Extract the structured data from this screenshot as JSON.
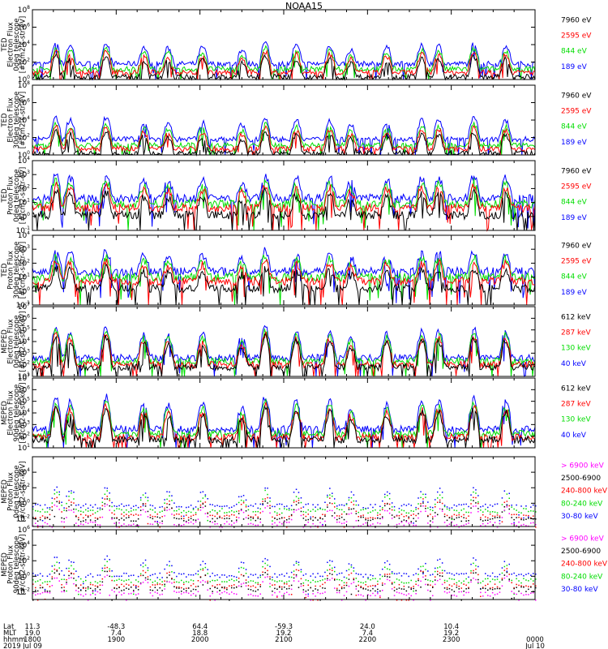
{
  "title": "NOAA15",
  "colors": {
    "black": "#000000",
    "red": "#ff0000",
    "green": "#00dd00",
    "blue": "#0000ff",
    "magenta": "#ff00ff"
  },
  "chart_data": [
    {
      "type": "line",
      "ylabel": [
        "TED",
        "Electron Flux",
        "0deg telescope",
        "[#/cm2-s-str-eV]"
      ],
      "ylog": true,
      "yticks_exp": [
        0,
        2,
        4,
        6,
        8
      ],
      "ylim_exp": [
        0,
        8
      ],
      "baseline_exp": 1.4,
      "bump_scale": 2.6,
      "series": [
        {
          "name": "7960 eV",
          "color": "#000000",
          "offset": -1.1
        },
        {
          "name": "2595 eV",
          "color": "#ff0000",
          "offset": -0.6
        },
        {
          "name": "844 eV",
          "color": "#00dd00",
          "offset": -0.2
        },
        {
          "name": "189 eV",
          "color": "#0000ff",
          "offset": 0.4
        }
      ]
    },
    {
      "type": "line",
      "ylabel": [
        "TED",
        "Electron Flux",
        "30deg telescope",
        "[#/cm2-s-str-eV]"
      ],
      "ylog": true,
      "yticks_exp": [
        0,
        2,
        4,
        6,
        8
      ],
      "ylim_exp": [
        0,
        8
      ],
      "baseline_exp": 1.3,
      "bump_scale": 2.7,
      "series": [
        {
          "name": "7960 eV",
          "color": "#000000",
          "offset": -1.1
        },
        {
          "name": "2595 eV",
          "color": "#ff0000",
          "offset": -0.6
        },
        {
          "name": "844 eV",
          "color": "#00dd00",
          "offset": -0.2
        },
        {
          "name": "189 eV",
          "color": "#0000ff",
          "offset": 0.5
        }
      ]
    },
    {
      "type": "line",
      "ylabel": [
        "TED",
        "Proton Flux",
        "0deg telescope",
        "[#/cm2-s-str-eV]"
      ],
      "ylog": true,
      "yticks_exp": [
        -1,
        0,
        1,
        2,
        3,
        4
      ],
      "ylim_exp": [
        -1,
        4
      ],
      "baseline_exp": 1.0,
      "bump_scale": 1.8,
      "series": [
        {
          "name": "7960 eV",
          "color": "#000000",
          "offset": -0.9
        },
        {
          "name": "2595 eV",
          "color": "#ff0000",
          "offset": -0.4
        },
        {
          "name": "844 eV",
          "color": "#00dd00",
          "offset": -0.1
        },
        {
          "name": "189 eV",
          "color": "#0000ff",
          "offset": 0.3
        }
      ]
    },
    {
      "type": "line",
      "ylabel": [
        "TED",
        "Proton Flux",
        "30deg telescope",
        "[#/cm2-s-str-eV]"
      ],
      "ylog": true,
      "yticks_exp": [
        -1,
        0,
        1,
        2,
        3,
        4
      ],
      "ylim_exp": [
        -1,
        4
      ],
      "baseline_exp": 1.1,
      "bump_scale": 1.6,
      "series": [
        {
          "name": "7960 eV",
          "color": "#000000",
          "offset": -0.9
        },
        {
          "name": "2595 eV",
          "color": "#ff0000",
          "offset": -0.4
        },
        {
          "name": "844 eV",
          "color": "#00dd00",
          "offset": -0.1
        },
        {
          "name": "189 eV",
          "color": "#0000ff",
          "offset": 0.3
        }
      ]
    },
    {
      "type": "line",
      "ylabel": [
        "MEPED",
        "Electron Flux",
        "0deg telescope",
        "[#/cm2-s-str-keV]"
      ],
      "ylog": true,
      "yticks_exp": [
        1,
        2,
        3,
        4,
        5,
        6,
        7
      ],
      "ylim_exp": [
        1,
        7
      ],
      "baseline_exp": 2.3,
      "bump_scale": 2.8,
      "series": [
        {
          "name": "612 keV",
          "color": "#000000",
          "offset": -0.5
        },
        {
          "name": "287 keV",
          "color": "#ff0000",
          "offset": -0.3
        },
        {
          "name": "130 keV",
          "color": "#00dd00",
          "offset": 0.0
        },
        {
          "name": "40 keV",
          "color": "#0000ff",
          "offset": 0.3
        }
      ]
    },
    {
      "type": "line",
      "ylabel": [
        "MEPED",
        "Electron Flux",
        "90deg telescope",
        "[#/cm2-s-str-keV]"
      ],
      "ylog": true,
      "yticks_exp": [
        1,
        2,
        3,
        4,
        5,
        6,
        7
      ],
      "ylim_exp": [
        1,
        7
      ],
      "baseline_exp": 2.2,
      "bump_scale": 3.0,
      "series": [
        {
          "name": "612 keV",
          "color": "#000000",
          "offset": -0.5
        },
        {
          "name": "287 keV",
          "color": "#ff0000",
          "offset": -0.3
        },
        {
          "name": "130 keV",
          "color": "#00dd00",
          "offset": 0.0
        },
        {
          "name": "40 keV",
          "color": "#0000ff",
          "offset": 0.4
        }
      ]
    },
    {
      "type": "scatter",
      "ylabel": [
        "MEPED",
        "Proton Flux",
        "0deg telescope",
        "[#/cm2-s-str-keV]"
      ],
      "ylog": true,
      "yticks_exp": [
        -2,
        0,
        2,
        4
      ],
      "ylim_exp": [
        -3,
        6
      ],
      "baseline_exp": -0.6,
      "bump_scale": 2.6,
      "series": [
        {
          "name": "> 6900 keV",
          "color": "#ff00ff",
          "offset": -2.0
        },
        {
          "name": "2500-6900",
          "color": "#000000",
          "offset": -1.4
        },
        {
          "name": "240-800 keV",
          "color": "#ff0000",
          "offset": -1.0
        },
        {
          "name": "80-240 keV",
          "color": "#00dd00",
          "offset": -0.3
        },
        {
          "name": "30-80 keV",
          "color": "#0000ff",
          "offset": 0.3
        }
      ]
    },
    {
      "type": "scatter",
      "ylabel": [
        "MEPED",
        "Proton Flux",
        "90deg telescope",
        "[#/cm2-s-str-keV]"
      ],
      "ylog": true,
      "yticks_exp": [
        -2,
        0,
        2,
        4,
        6
      ],
      "ylim_exp": [
        -3,
        6
      ],
      "baseline_exp": -0.2,
      "bump_scale": 2.5,
      "series": [
        {
          "name": "> 6900 keV",
          "color": "#ff00ff",
          "offset": -2.0
        },
        {
          "name": "2500-6900",
          "color": "#000000",
          "offset": -1.4
        },
        {
          "name": "240-800 keV",
          "color": "#ff0000",
          "offset": -1.0
        },
        {
          "name": "80-240 keV",
          "color": "#00dd00",
          "offset": -0.3
        },
        {
          "name": "30-80 keV",
          "color": "#0000ff",
          "offset": 0.4
        }
      ]
    }
  ],
  "x_axis": {
    "range_hours": [
      18.0,
      24.0
    ],
    "row_labels": [
      "Lat",
      "MLT",
      "hhmm",
      "2019"
    ],
    "columns": [
      {
        "t": 18.0,
        "lat": "11.3",
        "mlt": "19.0",
        "hhmm": "1800",
        "date": "Jul 09"
      },
      {
        "t": 19.0,
        "lat": "-48.3",
        "mlt": "7.4",
        "hhmm": "1900",
        "date": ""
      },
      {
        "t": 20.0,
        "lat": "64.4",
        "mlt": "18.8",
        "hhmm": "2000",
        "date": ""
      },
      {
        "t": 21.0,
        "lat": "-59.3",
        "mlt": "19.2",
        "hhmm": "2100",
        "date": ""
      },
      {
        "t": 22.0,
        "lat": "24.0",
        "mlt": "7.4",
        "hhmm": "2200",
        "date": ""
      },
      {
        "t": 23.0,
        "lat": "10.4",
        "mlt": "19.2",
        "hhmm": "2300",
        "date": ""
      },
      {
        "t": 24.0,
        "lat": "",
        "mlt": "",
        "hhmm": "0000",
        "date": "Jul 10"
      }
    ],
    "radiation_belt_passes_hours": [
      18.28,
      18.45,
      18.88,
      19.33,
      19.62,
      20.03,
      20.5,
      20.78,
      21.15,
      21.55,
      21.8,
      22.23,
      22.65,
      22.85,
      23.27,
      23.65
    ]
  }
}
